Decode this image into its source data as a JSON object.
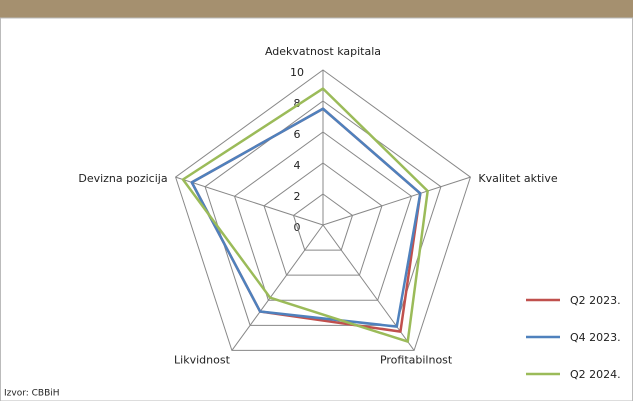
{
  "chart_data": {
    "type": "radar",
    "categories": [
      "Adekvatnost kapitala",
      "Kvalitet aktive",
      "Profitabilnost",
      "Likvidnost",
      "Devizna pozicija"
    ],
    "series": [
      {
        "name": "Q2 2023.",
        "color": "#c0504d",
        "values": [
          7.5,
          6.6,
          8.5,
          6.9,
          8.9
        ]
      },
      {
        "name": "Q4 2023.",
        "color": "#4f81bd",
        "values": [
          7.5,
          6.6,
          8.1,
          6.9,
          8.9
        ]
      },
      {
        "name": "Q2 2024.",
        "color": "#9bbb59",
        "values": [
          8.8,
          7.1,
          9.3,
          5.8,
          9.5
        ]
      }
    ],
    "ylim": [
      0,
      10
    ],
    "yticks": [
      0,
      2,
      4,
      6,
      8,
      10
    ],
    "grid": true,
    "legend": "lower right",
    "source": "Izvor: CBBiH"
  }
}
